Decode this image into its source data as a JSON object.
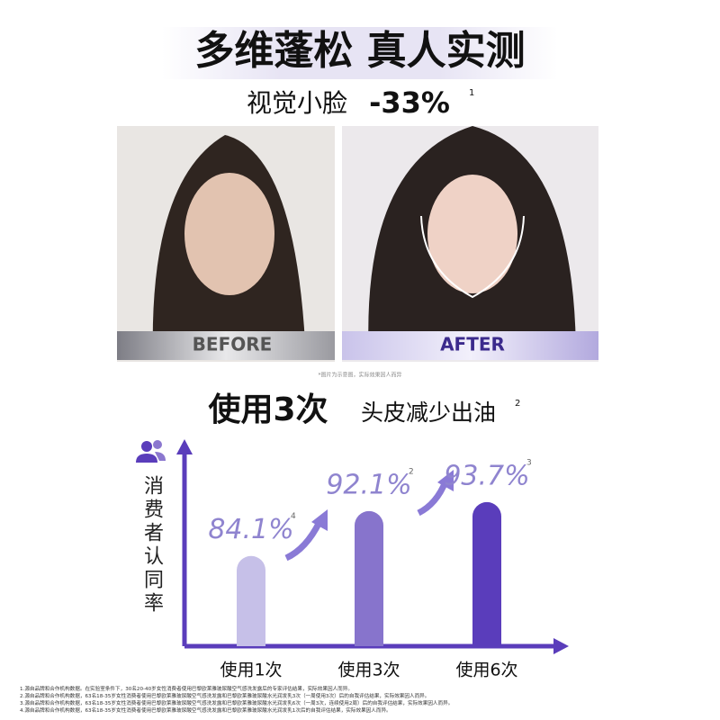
{
  "header": {
    "title": "多维蓬松 真人实测",
    "claim": "视觉小脸",
    "claim_value": "-33%",
    "claim_note": "1"
  },
  "photos": {
    "before": "BEFORE",
    "after": "AFTER",
    "disclaimer": "*图片为示意图，实际效果因人而异"
  },
  "chart_data": {
    "type": "bar",
    "title": "使用3次",
    "subtitle": "头皮减少出油",
    "title_note": "2",
    "y_label": "消费者认同率",
    "categories": [
      "使用1次",
      "使用3次",
      "使用6次"
    ],
    "values": [
      84.1,
      92.1,
      93.7
    ],
    "value_labels": [
      "84.1%",
      "92.1%",
      "93.7%"
    ],
    "value_notes": [
      "4",
      "2",
      "3"
    ],
    "colors": [
      "#c6c0e8",
      "#8774cc",
      "#5a3dbb"
    ],
    "ylim": [
      68,
      103
    ]
  },
  "footnotes": [
    "1.源自品牌和合作机构数据。在实验室条件下，30名20-40岁女性消费者使用巴黎欧莱雅玻尿酸空气感洗发露后的专家评估结果，实际效果因人而异。",
    "2.源自品牌和合作机构数据，63名18-35岁女性消费者使用巴黎欧莱雅玻尿酸空气感洗发露和巴黎欧莱雅玻尿酸水光润发乳3次（一周使用3次）后的自我评估结果，实际效果因人而异。",
    "3.源自品牌和合作机构数据，63名18-35岁女性消费者使用巴黎欧莱雅玻尿酸空气感洗发露和巴黎欧莱雅玻尿酸水光润发乳6次（一周3次，连续使用2周）后的自我评估结果，实际效果因人而异。",
    "4.源自品牌和合作机构数据，63名18-35岁女性消费者使用巴黎欧莱雅玻尿酸空气感洗发露和巴黎欧莱雅玻尿酸水光润发乳1次后的自我评估结果，实际效果因人而异。"
  ]
}
